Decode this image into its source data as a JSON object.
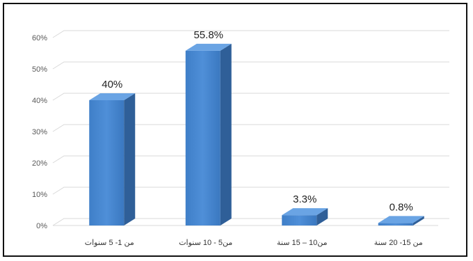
{
  "chart_data": {
    "type": "bar",
    "style": "3d-column",
    "categories": [
      "من 1- 5 سنوات",
      "من5 - 10 سنوات",
      "من10 – 15 سنة",
      "من 15- 20 سنة"
    ],
    "series": [
      {
        "values": [
          40,
          55.8,
          3.3,
          0.8
        ],
        "data_labels": [
          "40%",
          "55.8%",
          "3.3%",
          "0.8%"
        ],
        "color": "#4f8fd8"
      }
    ],
    "ylim": [
      0,
      60
    ],
    "yticks": [
      0,
      10,
      20,
      30,
      40,
      50,
      60
    ],
    "ytick_labels": [
      "0%",
      "10%",
      "20%",
      "30%",
      "40%",
      "50%",
      "60%"
    ],
    "grid": true,
    "legend": "none",
    "colors": {
      "bar_front": "#4f8fd8",
      "bar_side": "#2f5f98",
      "bar_top": "#6aa4e4",
      "grid": "#d9d9d9"
    }
  }
}
